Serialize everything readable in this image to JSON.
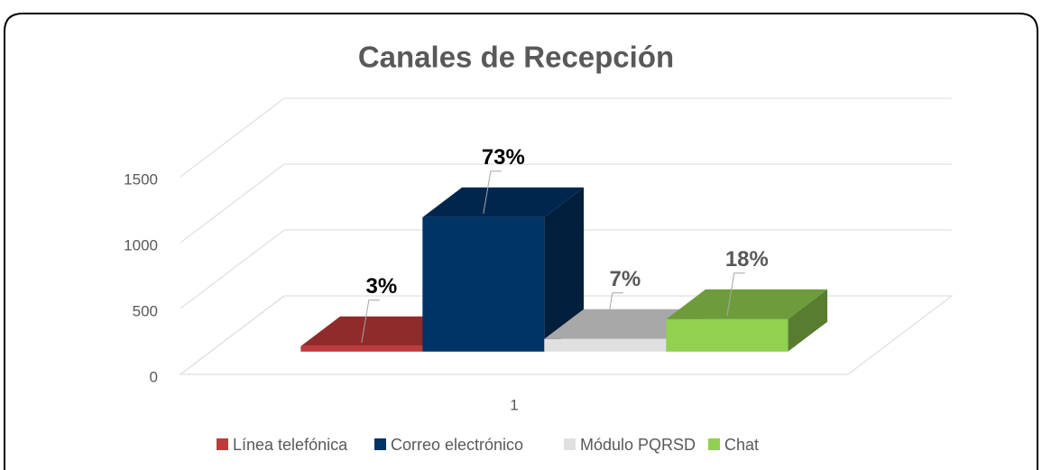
{
  "chart_data": {
    "type": "bar3d",
    "title": "Canales de Recepción",
    "categories": [
      "1"
    ],
    "series": [
      {
        "name": "Línea telefónica",
        "color": "#c0393b",
        "values": [
          41
        ]
      },
      {
        "name": "Correo electrónico",
        "color": "#003366",
        "values": [
          1020
        ]
      },
      {
        "name": "Módulo PQRSD",
        "color": "#e0e0e0",
        "values": [
          96
        ]
      },
      {
        "name": "Chat",
        "color": "#92d050",
        "values": [
          246
        ]
      }
    ],
    "percent_labels": [
      "3%",
      "73%",
      "7%",
      "18%"
    ],
    "ylim": [
      0,
      1500
    ],
    "yticks": [
      0,
      500,
      1000,
      1500
    ],
    "grid": true,
    "legend": "bottom"
  }
}
